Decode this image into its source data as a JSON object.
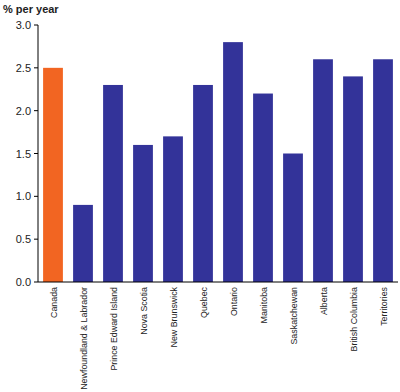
{
  "chart_data": {
    "type": "bar",
    "y_label": "% per year",
    "categories": [
      "Canada",
      "Newfoundland & Labrador",
      "Prince Edward Island",
      "Nova Scotia",
      "New Brunswick",
      "Quebec",
      "Ontario",
      "Manitoba",
      "Saskatchewan",
      "Alberta",
      "British Columbia",
      "Territories"
    ],
    "values": [
      2.5,
      0.9,
      2.3,
      1.6,
      1.7,
      2.3,
      2.8,
      2.2,
      1.5,
      2.6,
      2.4,
      2.6
    ],
    "colors": [
      "#f26522",
      "#333399",
      "#333399",
      "#333399",
      "#333399",
      "#333399",
      "#333399",
      "#333399",
      "#333399",
      "#333399",
      "#333399",
      "#333399"
    ],
    "ylim": [
      0,
      3
    ],
    "yticks": [
      {
        "value": 0,
        "label": "0.0"
      },
      0.5,
      {
        "value": 1,
        "label": "1.0"
      },
      1.5,
      {
        "value": 2,
        "label": "2.0"
      },
      2.5,
      {
        "value": 3,
        "label": "3.0"
      }
    ],
    "grid": false
  }
}
